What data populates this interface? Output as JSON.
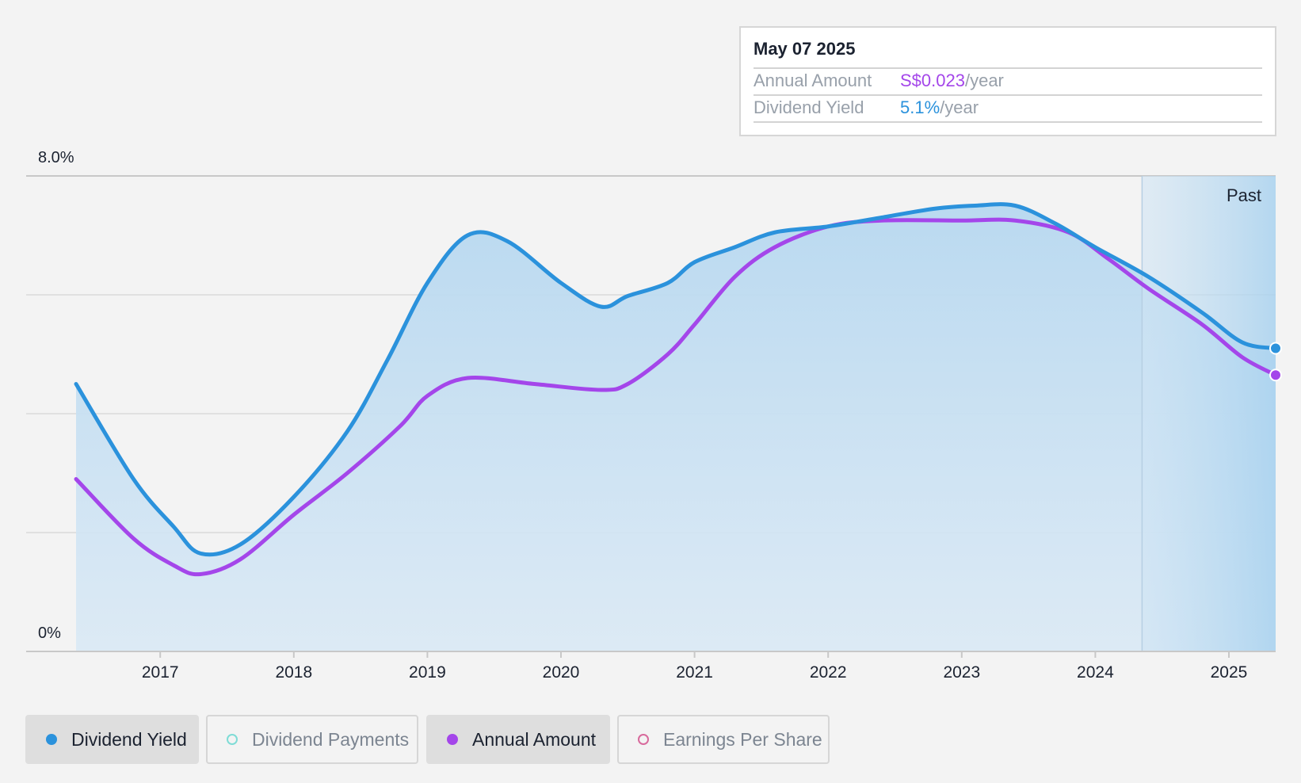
{
  "tooltip": {
    "date": "May 07 2025",
    "rows": [
      {
        "label": "Annual Amount",
        "value": "S$0.023",
        "unit": "/year"
      },
      {
        "label": "Dividend Yield",
        "value": "5.1%",
        "unit": "/year"
      }
    ]
  },
  "past_label": "Past",
  "legend": [
    {
      "label": "Dividend Yield",
      "active": true,
      "color": "#2b92dc",
      "filled": true
    },
    {
      "label": "Dividend Payments",
      "active": false,
      "color": "#7fdcd6",
      "filled": false
    },
    {
      "label": "Annual Amount",
      "active": true,
      "color": "#a446ea",
      "filled": true
    },
    {
      "label": "Earnings Per Share",
      "active": false,
      "color": "#d86a9c",
      "filled": false
    }
  ],
  "colors": {
    "yield": "#2b92dc",
    "annual": "#a446ea",
    "area": "#b9d9f0",
    "past_band": "#c6e0f3"
  },
  "chart_data": {
    "type": "line",
    "ylim": [
      0,
      8
    ],
    "y_tick_labels": [
      "8.0%",
      "0%"
    ],
    "x_ticks": [
      2017,
      2018,
      2019,
      2020,
      2021,
      2022,
      2023,
      2024,
      2025
    ],
    "xlim": [
      2016.37,
      2025.35
    ],
    "past_start": 2024.35,
    "series": [
      {
        "name": "Dividend Yield",
        "x": [
          2016.37,
          2016.8,
          2017.1,
          2017.3,
          2017.6,
          2018.0,
          2018.4,
          2018.7,
          2019.0,
          2019.3,
          2019.6,
          2020.0,
          2020.3,
          2020.5,
          2020.8,
          2021.0,
          2021.3,
          2021.6,
          2022.0,
          2022.4,
          2022.8,
          2023.1,
          2023.4,
          2023.7,
          2024.0,
          2024.4,
          2024.8,
          2025.1,
          2025.35
        ],
        "y": [
          4.5,
          2.9,
          2.1,
          1.65,
          1.8,
          2.6,
          3.7,
          4.9,
          6.2,
          7.0,
          6.9,
          6.2,
          5.8,
          5.98,
          6.2,
          6.55,
          6.8,
          7.05,
          7.15,
          7.3,
          7.45,
          7.5,
          7.5,
          7.2,
          6.8,
          6.3,
          5.7,
          5.2,
          5.1
        ]
      },
      {
        "name": "Annual Amount",
        "x": [
          2016.37,
          2016.8,
          2017.1,
          2017.3,
          2017.6,
          2018.0,
          2018.4,
          2018.8,
          2019.0,
          2019.3,
          2019.8,
          2020.3,
          2020.5,
          2020.8,
          2021.0,
          2021.3,
          2021.6,
          2022.0,
          2022.4,
          2023.0,
          2023.4,
          2023.8,
          2024.1,
          2024.4,
          2024.8,
          2025.1,
          2025.35
        ],
        "y": [
          2.9,
          1.9,
          1.45,
          1.3,
          1.55,
          2.3,
          3.0,
          3.8,
          4.3,
          4.6,
          4.5,
          4.4,
          4.5,
          5.0,
          5.5,
          6.3,
          6.8,
          7.15,
          7.25,
          7.25,
          7.25,
          7.05,
          6.6,
          6.1,
          5.5,
          4.95,
          4.65
        ]
      }
    ]
  }
}
